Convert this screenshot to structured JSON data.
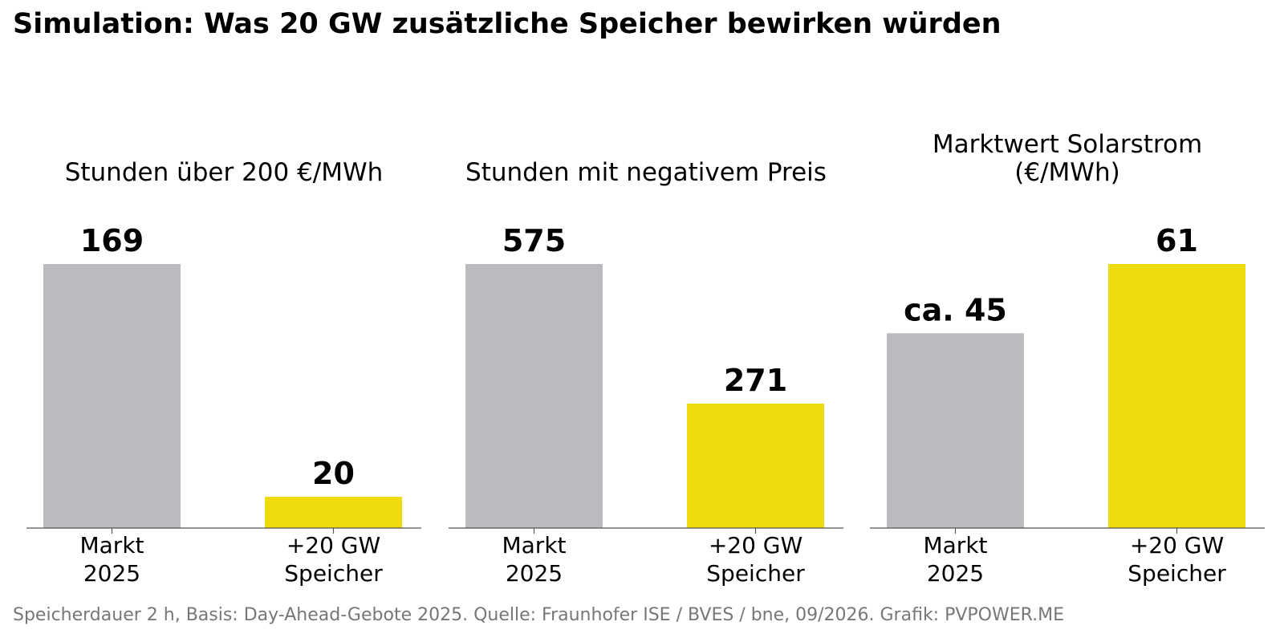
{
  "title": "Simulation: Was 20 GW zusätzliche Speicher bewirken würden",
  "footer": "Speicherdauer 2 h, Basis: Day-Ahead-Gebote 2025. Quelle: Fraunhofer ISE / BVES / bne, 09/2026. Grafik: PVPOWER.ME",
  "colors": {
    "baseline": "#bbbbbf",
    "storage": "#eedb0c",
    "axis": "#555555",
    "footer": "#777777"
  },
  "chart_data": [
    {
      "type": "bar",
      "title": [
        "Stunden über 200 €/MWh"
      ],
      "categories": [
        [
          "Markt",
          "2025"
        ],
        [
          "+20 GW",
          "Speicher"
        ]
      ],
      "values": [
        169,
        20
      ],
      "value_labels": [
        "169",
        "20"
      ],
      "colors": [
        "#bbbbbf",
        "#eedb0c"
      ],
      "ylim": [
        0,
        169
      ]
    },
    {
      "type": "bar",
      "title": [
        "Stunden mit negativem Preis"
      ],
      "categories": [
        [
          "Markt",
          "2025"
        ],
        [
          "+20 GW",
          "Speicher"
        ]
      ],
      "values": [
        575,
        271
      ],
      "value_labels": [
        "575",
        "271"
      ],
      "colors": [
        "#bbbbbf",
        "#eedb0c"
      ],
      "ylim": [
        0,
        575
      ]
    },
    {
      "type": "bar",
      "title": [
        "Marktwert Solarstrom",
        "(€/MWh)"
      ],
      "categories": [
        [
          "Markt",
          "2025"
        ],
        [
          "+20 GW",
          "Speicher"
        ]
      ],
      "values": [
        45,
        61
      ],
      "value_labels": [
        "ca. 45",
        "61"
      ],
      "colors": [
        "#bbbbbf",
        "#eedb0c"
      ],
      "ylim": [
        0,
        61
      ]
    }
  ]
}
